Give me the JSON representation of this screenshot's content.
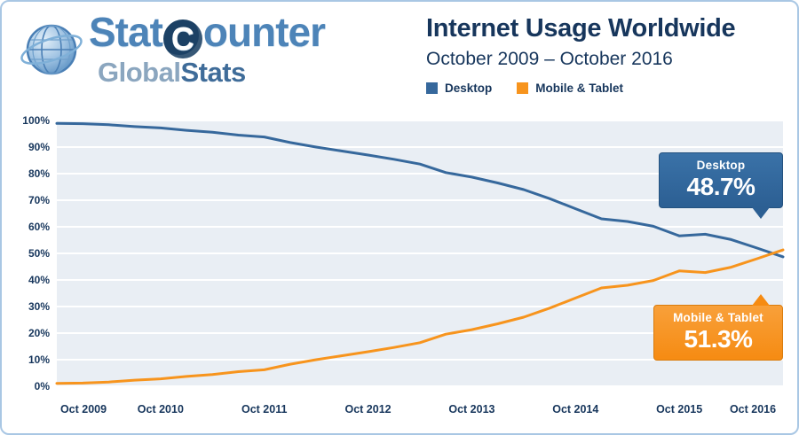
{
  "logo": {
    "part1": "Stat",
    "part2": "C",
    "part3": "ounter",
    "global": "Global",
    "stats": "Stats"
  },
  "header": {
    "title": "Internet Usage Worldwide",
    "subtitle": "October 2009 – October 2016"
  },
  "legend": {
    "items": [
      {
        "label": "Desktop",
        "color": "#36689c"
      },
      {
        "label": "Mobile & Tablet",
        "color": "#f7941d"
      }
    ]
  },
  "callouts": {
    "desktop": {
      "label": "Desktop",
      "value": "48.7%",
      "color": "#2c5f93"
    },
    "mobile": {
      "label": "Mobile & Tablet",
      "value": "51.3%",
      "color": "#f7941d"
    }
  },
  "chart_data": {
    "type": "line",
    "title": "Internet Usage Worldwide",
    "subtitle": "October 2009 – October 2016",
    "ylim": [
      0,
      100
    ],
    "y_tick_labels": [
      "0%",
      "10%",
      "20%",
      "30%",
      "40%",
      "50%",
      "60%",
      "70%",
      "80%",
      "90%",
      "100%"
    ],
    "x_tick_labels": [
      "Oct 2009",
      "Oct 2010",
      "Oct 2011",
      "Oct 2012",
      "Oct 2013",
      "Oct 2014",
      "Oct 2015",
      "Oct 2016"
    ],
    "x": [
      "Oct 2009",
      "Jan 2010",
      "Apr 2010",
      "Jul 2010",
      "Oct 2010",
      "Jan 2011",
      "Apr 2011",
      "Jul 2011",
      "Oct 2011",
      "Jan 2012",
      "Apr 2012",
      "Jul 2012",
      "Oct 2012",
      "Jan 2013",
      "Apr 2013",
      "Jul 2013",
      "Oct 2013",
      "Jan 2014",
      "Apr 2014",
      "Jul 2014",
      "Oct 2014",
      "Jan 2015",
      "Apr 2015",
      "Jul 2015",
      "Oct 2015",
      "Jan 2016",
      "Apr 2016",
      "Jul 2016",
      "Oct 2016"
    ],
    "series": [
      {
        "name": "Desktop",
        "color": "#36689c",
        "values": [
          98.9,
          98.8,
          98.4,
          97.7,
          97.2,
          96.3,
          95.6,
          94.5,
          93.8,
          91.7,
          90.0,
          88.5,
          87.0,
          85.4,
          83.6,
          80.4,
          78.7,
          76.5,
          74.0,
          70.6,
          66.8,
          63.0,
          62.0,
          60.2,
          56.6,
          57.2,
          55.2,
          52.0,
          48.7
        ],
        "end_label": "48.7%"
      },
      {
        "name": "Mobile & Tablet",
        "color": "#f7941d",
        "values": [
          1.1,
          1.2,
          1.6,
          2.3,
          2.8,
          3.7,
          4.4,
          5.5,
          6.2,
          8.3,
          10.0,
          11.5,
          13.0,
          14.6,
          16.4,
          19.6,
          21.3,
          23.5,
          26.0,
          29.4,
          33.2,
          37.0,
          38.0,
          39.8,
          43.4,
          42.8,
          44.8,
          48.0,
          51.3
        ],
        "end_label": "51.3%"
      }
    ],
    "grid": "horizontal",
    "legend_position": "top",
    "plot_background": "#e9eef4"
  }
}
